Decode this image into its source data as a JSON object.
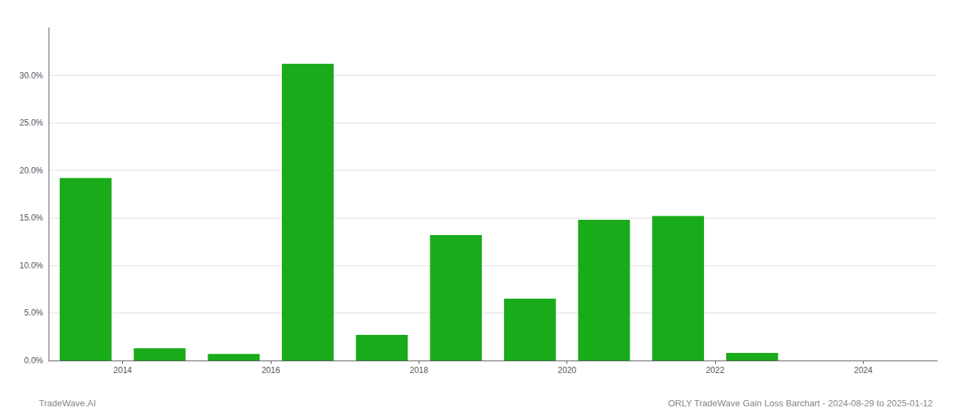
{
  "chart_data": {
    "type": "bar",
    "x": [
      2013,
      2014,
      2015,
      2016,
      2017,
      2018,
      2019,
      2020,
      2021,
      2022,
      2023
    ],
    "values": [
      0.192,
      0.013,
      0.007,
      0.312,
      0.027,
      0.132,
      0.065,
      0.148,
      0.152,
      0.008,
      0.0
    ],
    "color": "#1aab1a",
    "xlim": [
      2012.5,
      2024.5
    ],
    "xticks": [
      {
        "value": 2013.5,
        "label": "2014"
      },
      {
        "value": 2015.5,
        "label": "2016"
      },
      {
        "value": 2017.5,
        "label": "2018"
      },
      {
        "value": 2019.5,
        "label": "2020"
      },
      {
        "value": 2021.5,
        "label": "2022"
      },
      {
        "value": 2023.5,
        "label": "2024"
      }
    ],
    "ylim": [
      0,
      0.35
    ],
    "yticks": [
      {
        "value": 0.0,
        "label": "0.0%"
      },
      {
        "value": 0.05,
        "label": "5.0%"
      },
      {
        "value": 0.1,
        "label": "10.0%"
      },
      {
        "value": 0.15,
        "label": "15.0%"
      },
      {
        "value": 0.2,
        "label": "20.0%"
      },
      {
        "value": 0.25,
        "label": "25.0%"
      },
      {
        "value": 0.3,
        "label": "30.0%"
      }
    ],
    "grid": true,
    "annotations": [
      "TradeWave.AI",
      "ORLY TradeWave Gain Loss Barchart - 2024-08-29 to 2025-01-12"
    ]
  }
}
